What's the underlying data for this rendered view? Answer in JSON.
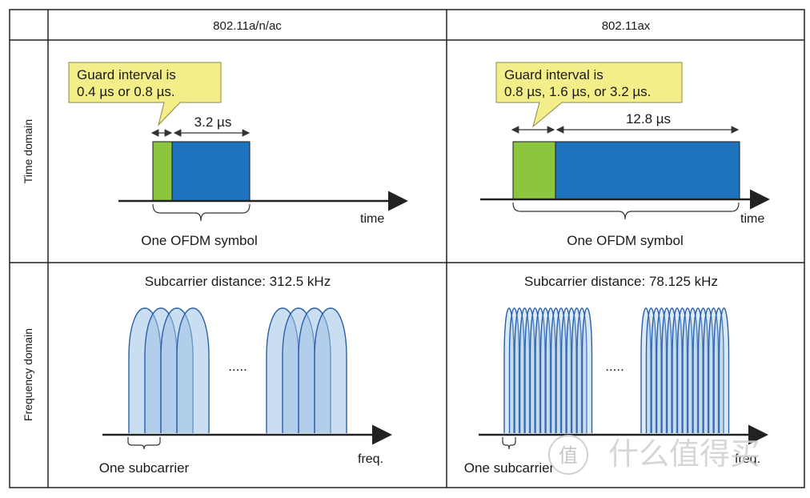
{
  "columns": [
    "802.11a/n/ac",
    "802.11ax"
  ],
  "rows": [
    "Time domain",
    "Frequency domain"
  ],
  "time_domain": {
    "left": {
      "callout_line1": "Guard interval is",
      "callout_line2": "0.4 µs or 0.8 µs.",
      "duration": "3.2 µs",
      "axis_label": "time",
      "symbol_label": "One OFDM symbol"
    },
    "right": {
      "callout_line1": "Guard interval is",
      "callout_line2": "0.8 µs, 1.6 µs, or 3.2 µs.",
      "duration": "12.8 µs",
      "axis_label": "time",
      "symbol_label": "One OFDM symbol"
    }
  },
  "frequency_domain": {
    "left": {
      "title": "Subcarrier distance: 312.5 kHz",
      "dots": ".....",
      "axis_label": "freq.",
      "subcarrier_label": "One subcarrier"
    },
    "right": {
      "title": "Subcarrier distance: 78.125 kHz",
      "dots": ".....",
      "axis_label": "freq.",
      "subcarrier_label": "One subcarrier"
    }
  },
  "watermark": {
    "symbol": "值",
    "text": "什么值得买"
  },
  "colors": {
    "guard": "#8cc63f",
    "symbol": "#1e73be",
    "callout": "#f3ee8a",
    "subcarrier_fill": "#9cc3e6",
    "subcarrier_stroke": "#2b5fa8"
  }
}
